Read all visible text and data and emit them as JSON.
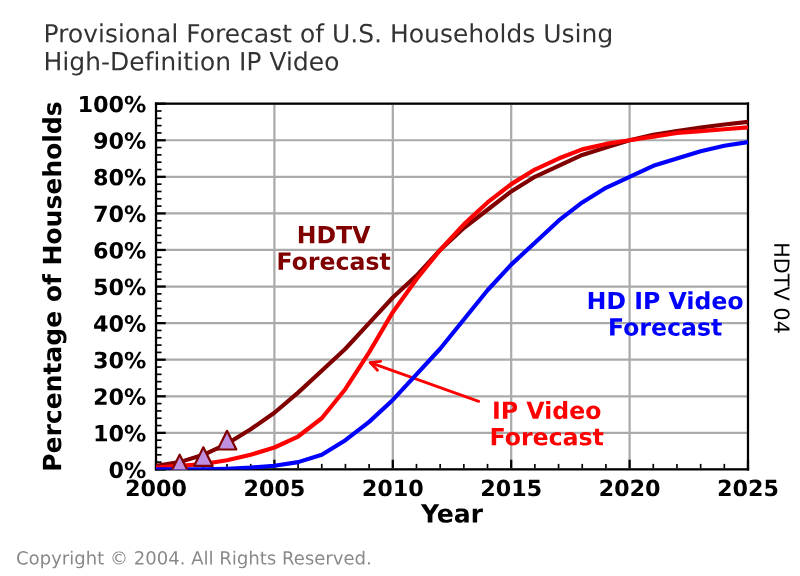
{
  "chart_data": {
    "type": "line",
    "title": "Provisional Forecast of U.S. Households Using\nHigh-Definition IP Video",
    "xlabel": "Year",
    "ylabel": "Percentage of Households",
    "x": [
      2000,
      2001,
      2002,
      2003,
      2004,
      2005,
      2006,
      2007,
      2008,
      2009,
      2010,
      2011,
      2012,
      2013,
      2014,
      2015,
      2016,
      2017,
      2018,
      2019,
      2020,
      2021,
      2022,
      2023,
      2024,
      2025
    ],
    "series": [
      {
        "name": "HDTV\nForecast",
        "color": "#800000",
        "values": [
          1,
          2,
          4,
          7,
          11,
          15.5,
          21,
          27,
          33,
          40,
          47,
          53,
          60,
          66,
          71,
          76,
          80,
          83,
          86,
          88,
          90,
          91.5,
          92.5,
          93.5,
          94.3,
          95
        ]
      },
      {
        "name": "IP Video\nForecast",
        "color": "#ff0000",
        "values": [
          0.5,
          1,
          1.5,
          2.5,
          4,
          6,
          9,
          14,
          22,
          32,
          43,
          52,
          60,
          67,
          73,
          78,
          82,
          85,
          87.5,
          89,
          90,
          91,
          92,
          92.5,
          93,
          93.5
        ]
      },
      {
        "name": "HD IP Video\nForecast",
        "color": "#0000ff",
        "values": [
          0,
          0,
          0,
          0.2,
          0.5,
          1,
          2,
          4,
          8,
          13,
          19,
          26,
          33,
          41,
          49,
          56,
          62,
          68,
          73,
          77,
          80,
          83,
          85,
          87,
          88.5,
          89.5
        ]
      },
      {
        "type": "scatter",
        "color": "#c090e0",
        "marker": "triangle",
        "x": [
          2001,
          2002,
          2003
        ],
        "values": [
          1.5,
          3.5,
          8
        ]
      }
    ],
    "xlim": [
      2000,
      2025
    ],
    "xticks": [
      2000,
      2005,
      2010,
      2015,
      2020,
      2025
    ],
    "ylim": [
      0,
      100
    ],
    "yticks": [
      {
        "value": 0,
        "label": "0%"
      },
      {
        "value": 10,
        "label": "10%"
      },
      {
        "value": 20,
        "label": "20%"
      },
      {
        "value": 30,
        "label": "30%"
      },
      {
        "value": 40,
        "label": "40%"
      },
      {
        "value": 50,
        "label": "50%"
      },
      {
        "value": 60,
        "label": "60%"
      },
      {
        "value": 70,
        "label": "70%"
      },
      {
        "value": 80,
        "label": "80%"
      },
      {
        "value": 90,
        "label": "90%"
      },
      {
        "value": 100,
        "label": "100%"
      }
    ],
    "grid": true,
    "legend": false,
    "marker": "none",
    "line_style": "solid",
    "annotations": [
      "HDTV 04",
      "Copyright © 2004. All Rights Reserved."
    ]
  }
}
